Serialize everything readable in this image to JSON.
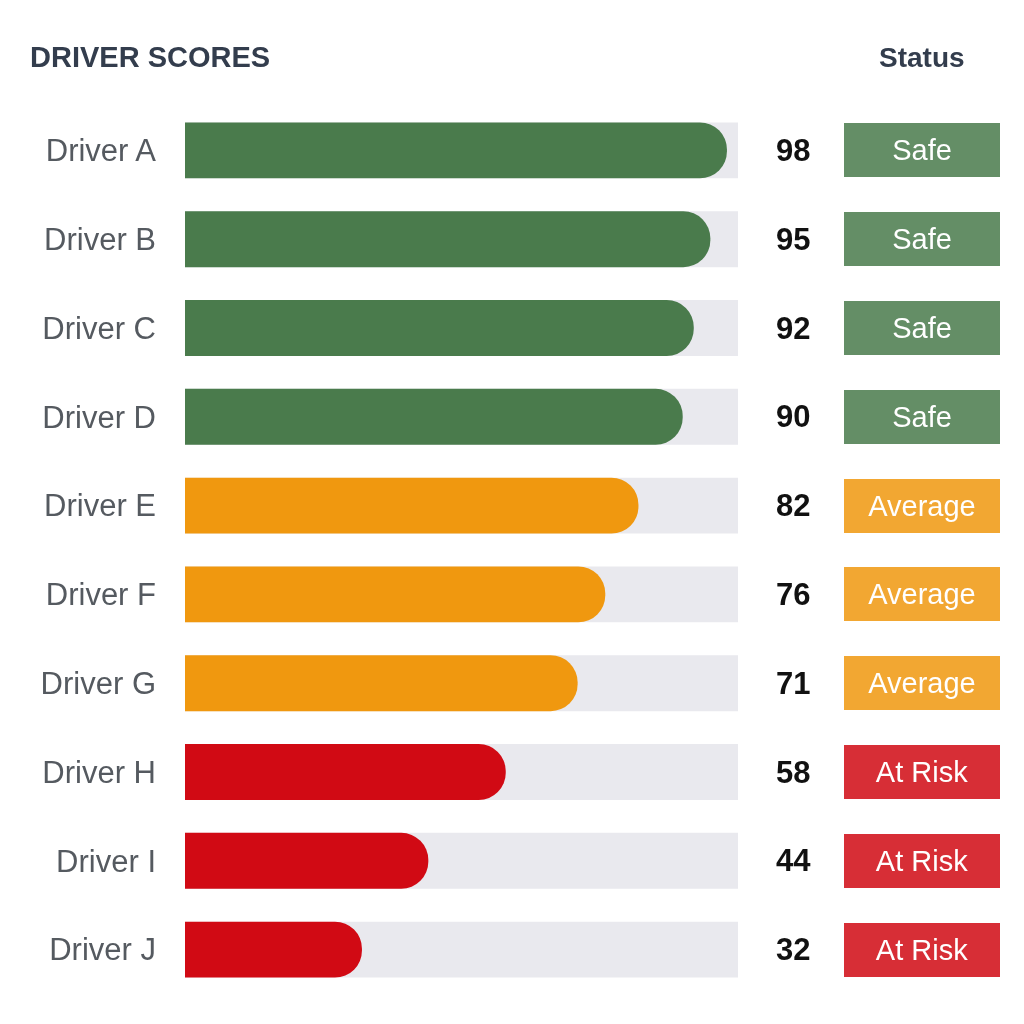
{
  "chart_data": {
    "type": "bar",
    "title": "DRIVER SCORES",
    "orientation": "horizontal",
    "categories": [
      "Driver A",
      "Driver B",
      "Driver C",
      "Driver D",
      "Driver E",
      "Driver F",
      "Driver G",
      "Driver H",
      "Driver I",
      "Driver J"
    ],
    "values": [
      98,
      95,
      92,
      90,
      82,
      76,
      71,
      58,
      44,
      32
    ],
    "colors": [
      "#4a7b4c",
      "#4a7b4c",
      "#4a7b4c",
      "#4a7b4c",
      "#f0980f",
      "#f0980f",
      "#f0980f",
      "#d10a14",
      "#d10a14",
      "#d10a14"
    ],
    "xlim": [
      0,
      100
    ],
    "tick_labels": "y",
    "data_labels": true,
    "grid": false,
    "annotations": [
      "Status",
      "Safe",
      "Safe",
      "Safe",
      "Safe",
      "Average",
      "Average",
      "Average",
      "At Risk",
      "At Risk",
      "At Risk"
    ]
  }
}
